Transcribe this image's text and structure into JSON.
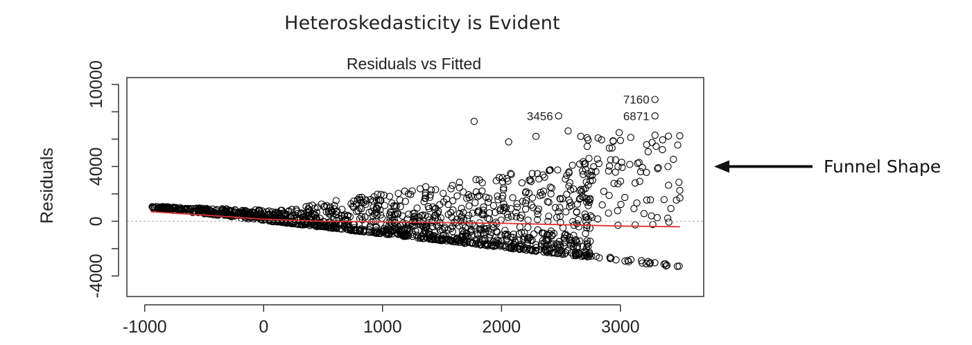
{
  "heading": "Heteroskedasticity is Evident",
  "annotation": {
    "text": "Funnel Shape",
    "target_y": 4000
  },
  "chart_data": {
    "type": "scatter",
    "title": "Residuals vs Fitted",
    "xlabel": "",
    "ylabel": "Residuals",
    "xlim": [
      -1150,
      3700
    ],
    "ylim": [
      -5500,
      10500
    ],
    "x_ticks": [
      "-1000",
      "0",
      "1000",
      "2000",
      "3000"
    ],
    "x_tick_values": [
      -1000,
      0,
      1000,
      2000,
      3000
    ],
    "y_ticks": [
      "-4000",
      "0",
      "4000",
      "10000"
    ],
    "y_tick_values": [
      -4000,
      0,
      4000,
      10000
    ],
    "y_minor_ticks": [
      -2000,
      2000,
      6000,
      8000
    ],
    "reference_line_y": 0,
    "smoother": {
      "color": "#e53030",
      "x": [
        -950,
        -500,
        0,
        500,
        1000,
        1500,
        2000,
        2500,
        3000,
        3500
      ],
      "y": [
        700,
        450,
        150,
        0,
        -50,
        -100,
        -150,
        -250,
        -350,
        -400
      ]
    },
    "labeled_points": [
      {
        "label": "7160",
        "x": 3290,
        "y": 8900
      },
      {
        "label": "6871",
        "x": 3290,
        "y": 7700
      },
      {
        "label": "3456",
        "x": 2480,
        "y": 7700
      }
    ],
    "marker_color": "#000000"
  }
}
